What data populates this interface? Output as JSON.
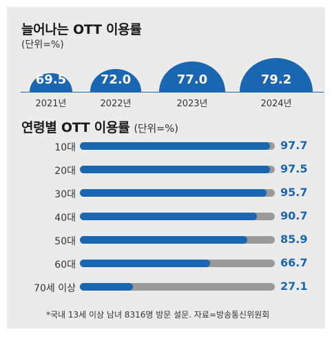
{
  "chart_data": [
    {
      "type": "bar",
      "title": "늘어나는 OTT 이용률",
      "unit": "(단위=%)",
      "categories": [
        "2021년",
        "2022년",
        "2023년",
        "2024년"
      ],
      "values": [
        69.5,
        72.0,
        77.0,
        79.2
      ],
      "value_labels": [
        "69.5",
        "72.0",
        "77.0",
        "79.2"
      ],
      "color": "#1b66b0"
    },
    {
      "type": "bar",
      "title": "연령별 OTT 이용률",
      "unit": "(단위=%)",
      "orientation": "horizontal",
      "categories": [
        "10대",
        "20대",
        "30대",
        "40대",
        "50대",
        "60대",
        "70세 이상"
      ],
      "values": [
        97.7,
        97.5,
        95.7,
        90.7,
        85.9,
        66.7,
        27.1
      ],
      "value_labels": [
        "97.7",
        "97.5",
        "95.7",
        "90.7",
        "85.9",
        "66.7",
        "27.1"
      ],
      "xlim": [
        0,
        100
      ],
      "fill_color": "#1b66b0",
      "track_color": "#9a9a9a"
    }
  ],
  "footnote": "*국내 13세 이상 남녀 8316명 방문 설문. 자료=방송통신위원회"
}
